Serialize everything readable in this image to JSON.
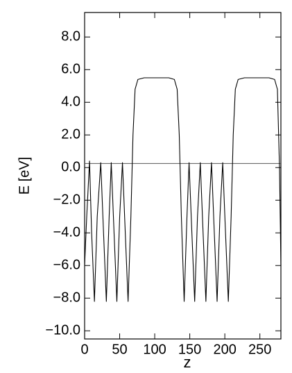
{
  "chart_data": {
    "type": "line",
    "xlabel": "z",
    "ylabel": "E [eV]",
    "x": [
      0,
      3,
      7,
      10,
      14,
      18,
      23,
      27,
      31,
      35,
      38,
      42,
      46,
      50,
      54,
      58,
      62,
      66,
      69,
      72,
      76,
      85,
      120,
      128,
      132,
      135,
      138,
      142,
      146,
      149,
      153,
      157,
      161,
      165,
      169,
      173,
      177,
      181,
      185,
      189,
      193,
      197,
      201,
      205,
      209,
      212,
      215,
      219,
      228,
      263,
      271,
      275,
      278,
      280
    ],
    "series": [
      {
        "color": "#000000",
        "values": [
          -6,
          -3,
          0.4,
          -4,
          -8.2,
          -3,
          0.3,
          -4,
          -8.2,
          -3,
          0.3,
          -4,
          -8.2,
          -3,
          0.3,
          -4,
          -8.2,
          -3,
          2,
          4.8,
          5.4,
          5.5,
          5.5,
          5.4,
          4.8,
          2,
          -3,
          -8.2,
          -3,
          0.3,
          -4,
          -8.2,
          -3,
          0.3,
          -4,
          -8.2,
          -3,
          0.3,
          -4,
          -8.2,
          -3,
          0.3,
          -4,
          -8.2,
          -3,
          2,
          4.8,
          5.4,
          5.5,
          5.5,
          5.4,
          4.8,
          0,
          -6
        ]
      }
    ],
    "reference_line": {
      "y": 0.25,
      "color": "#555555"
    },
    "xlim": [
      0,
      280
    ],
    "xticks": [
      0,
      50,
      100,
      150,
      200,
      250
    ],
    "ylim": [
      -10.5,
      9.5
    ],
    "yticks": [
      {
        "value": 8,
        "label": "8.0"
      },
      {
        "value": 6,
        "label": "6.0"
      },
      {
        "value": 4,
        "label": "4.0"
      },
      {
        "value": 2,
        "label": "2.0"
      },
      {
        "value": 0,
        "label": "0.0"
      },
      {
        "value": -2,
        "label": "−2.0"
      },
      {
        "value": -4,
        "label": "−4.0"
      },
      {
        "value": -6,
        "label": "−6.0"
      },
      {
        "value": -8,
        "label": "−8.0"
      },
      {
        "value": -10,
        "label": "−10.0"
      }
    ],
    "grid": false
  }
}
